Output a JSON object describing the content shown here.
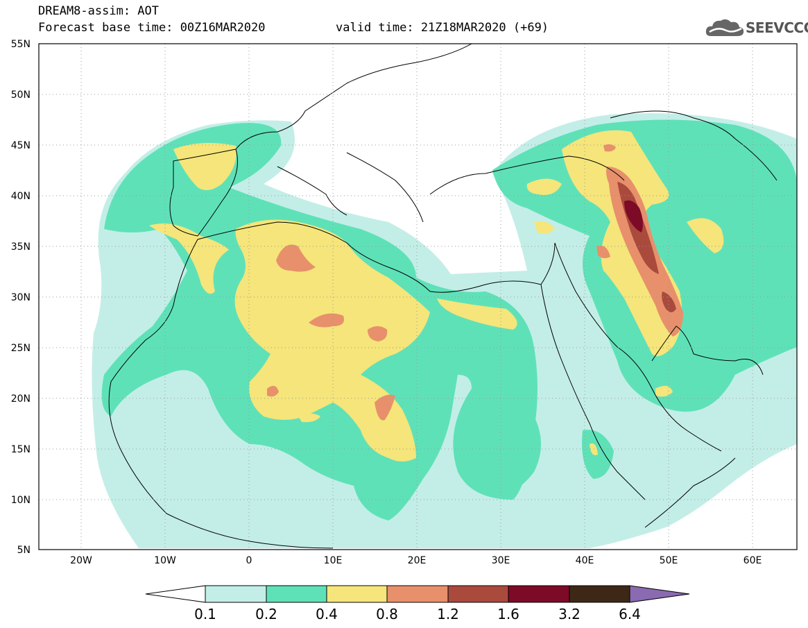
{
  "header": {
    "title": "DREAM8-assim: AOT",
    "base_time": "Forecast base time: 00Z16MAR2020",
    "valid_time": "valid time: 21Z18MAR2020 (+69)",
    "logo": "SEEVCCC"
  },
  "map": {
    "lat_labels": [
      "55N",
      "50N",
      "45N",
      "40N",
      "35N",
      "30N",
      "25N",
      "20N",
      "15N",
      "10N",
      "5N"
    ],
    "lon_labels": [
      "20W",
      "10W",
      "0",
      "10E",
      "20E",
      "30E",
      "40E",
      "50E",
      "60E"
    ],
    "lat_range": [
      5,
      55
    ],
    "lon_range": [
      -25,
      65
    ],
    "grid": "dotted"
  },
  "legend": {
    "levels": [
      "0.1",
      "0.2",
      "0.4",
      "0.8",
      "1.2",
      "1.6",
      "3.2",
      "6.4"
    ],
    "colors": [
      "#c3eee7",
      "#5fe1b8",
      "#f5e57a",
      "#e7906b",
      "#a94a3d",
      "#7d0a27",
      "#3d2818",
      "#8a6ab0"
    ]
  },
  "colors": {
    "c1": "#c3eee7",
    "c2": "#5fe1b8",
    "c3": "#f5e57a",
    "c4": "#e7906b",
    "c5": "#a94a3d",
    "c6": "#7d0a27",
    "c7": "#3d2818",
    "c8": "#8a6ab0"
  }
}
